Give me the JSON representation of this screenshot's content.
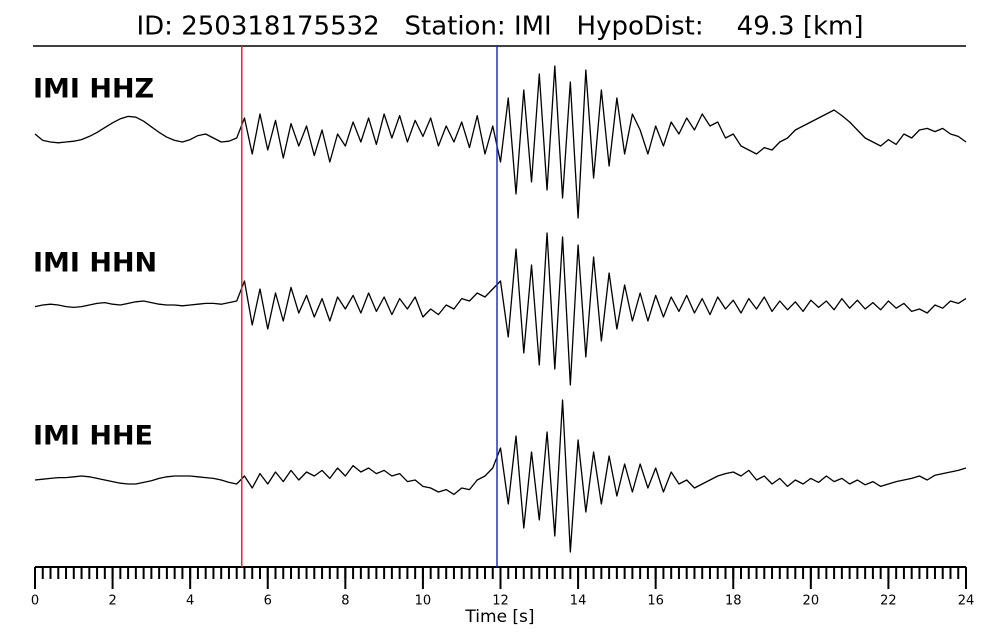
{
  "chart_data": {
    "type": "line",
    "title": "ID: 250318175532   Station: IMI   HypoDist:    49.3 [km]",
    "xlabel": "Time [s]",
    "xlim": [
      0,
      24
    ],
    "xticks": [
      0,
      2,
      4,
      6,
      8,
      10,
      12,
      14,
      16,
      18,
      20,
      22,
      24
    ],
    "xminorticks": [
      0,
      0.2,
      0.4,
      0.6,
      0.8,
      1,
      1.2,
      1.4,
      1.6,
      1.8,
      2,
      2.2,
      2.4,
      2.6,
      2.8,
      3,
      3.2,
      3.4,
      3.6,
      3.8,
      4,
      4.2,
      4.4,
      4.6,
      4.8,
      5,
      5.2,
      5.4,
      5.6,
      5.8,
      6,
      6.2,
      6.4,
      6.6,
      6.8,
      7,
      7.2,
      7.4,
      7.6,
      7.8,
      8,
      8.2,
      8.4,
      8.6,
      8.8,
      9,
      9.2,
      9.4,
      9.6,
      9.8,
      10,
      10.2,
      10.4,
      10.6,
      10.8,
      11,
      11.2,
      11.4,
      11.6,
      11.8,
      12,
      12.2,
      12.4,
      12.6,
      12.8,
      13,
      13.2,
      13.4,
      13.6,
      13.8,
      14,
      14.2,
      14.4,
      14.6,
      14.8,
      15,
      15.2,
      15.4,
      15.6,
      15.8,
      16,
      16.2,
      16.4,
      16.6,
      16.8,
      17,
      17.2,
      17.4,
      17.6,
      17.8,
      18,
      18.2,
      18.4,
      18.6,
      18.8,
      19,
      19.2,
      19.4,
      19.6,
      19.8,
      20,
      20.2,
      20.4,
      20.6,
      20.8,
      21,
      21.2,
      21.4,
      21.6,
      21.8,
      22,
      22.2,
      22.4,
      22.6,
      22.8,
      23,
      23.2,
      23.4,
      23.6,
      23.8,
      24
    ],
    "ylim": [
      -1,
      1
    ],
    "label_color": "#4c9a00",
    "vlines": [
      {
        "value": 5.33,
        "color": "#e8262b"
      },
      {
        "value": 11.91,
        "color": "#1f2fd0"
      }
    ],
    "x": [
      0,
      0.2,
      0.4,
      0.6,
      0.8,
      1,
      1.2,
      1.4,
      1.6,
      1.8,
      2,
      2.2,
      2.4,
      2.6,
      2.8,
      3,
      3.2,
      3.4,
      3.6,
      3.8,
      4,
      4.2,
      4.4,
      4.6,
      4.8,
      5,
      5.2,
      5.4,
      5.6,
      5.8,
      6,
      6.2,
      6.4,
      6.6,
      6.8,
      7,
      7.2,
      7.4,
      7.6,
      7.8,
      8,
      8.2,
      8.4,
      8.6,
      8.8,
      9,
      9.2,
      9.4,
      9.6,
      9.8,
      10,
      10.2,
      10.4,
      10.6,
      10.8,
      11,
      11.2,
      11.4,
      11.6,
      11.8,
      12,
      12.2,
      12.4,
      12.6,
      12.8,
      13,
      13.2,
      13.4,
      13.6,
      13.8,
      14,
      14.2,
      14.4,
      14.6,
      14.8,
      15,
      15.2,
      15.4,
      15.6,
      15.8,
      16,
      16.2,
      16.4,
      16.6,
      16.8,
      17,
      17.2,
      17.4,
      17.6,
      17.8,
      18,
      18.2,
      18.4,
      18.6,
      18.8,
      19,
      19.2,
      19.4,
      19.6,
      19.8,
      20,
      20.2,
      20.4,
      20.6,
      20.8,
      21,
      21.2,
      21.4,
      21.6,
      21.8,
      22,
      22.2,
      22.4,
      22.6,
      22.8,
      23,
      23.2,
      23.4,
      23.6,
      23.8,
      24
    ],
    "series": [
      {
        "name": "IMI HHZ",
        "color": "#000000",
        "values": [
          0.05,
          -0.03,
          -0.05,
          -0.06,
          -0.05,
          -0.04,
          -0.02,
          0.02,
          0.07,
          0.13,
          0.19,
          0.24,
          0.27,
          0.26,
          0.21,
          0.14,
          0.07,
          0.01,
          -0.03,
          -0.05,
          -0.02,
          0.03,
          0.05,
          0.0,
          -0.05,
          -0.04,
          0.0,
          0.25,
          -0.2,
          0.3,
          -0.15,
          0.22,
          -0.25,
          0.18,
          -0.1,
          0.15,
          -0.22,
          0.1,
          -0.3,
          0.05,
          -0.1,
          0.2,
          -0.05,
          0.25,
          -0.08,
          0.3,
          0.0,
          0.28,
          -0.05,
          0.22,
          0.02,
          0.25,
          -0.1,
          0.15,
          -0.05,
          0.2,
          -0.12,
          0.28,
          -0.2,
          0.15,
          -0.3,
          0.5,
          -0.7,
          0.6,
          -0.55,
          0.8,
          -0.65,
          0.9,
          -0.75,
          0.7,
          -1.0,
          0.85,
          -0.5,
          0.6,
          -0.35,
          0.5,
          -0.2,
          0.3,
          0.1,
          -0.2,
          0.15,
          -0.1,
          0.2,
          0.05,
          0.25,
          0.1,
          0.3,
          0.15,
          0.2,
          0.0,
          0.05,
          -0.1,
          -0.15,
          -0.2,
          -0.12,
          -0.15,
          -0.05,
          0.0,
          0.1,
          0.15,
          0.2,
          0.25,
          0.3,
          0.35,
          0.28,
          0.2,
          0.1,
          0.0,
          -0.05,
          -0.1,
          -0.02,
          -0.08,
          0.05,
          0.0,
          0.1,
          0.12,
          0.08,
          0.12,
          0.05,
          0.02,
          -0.05
        ]
      },
      {
        "name": "IMI HHN",
        "color": "#000000",
        "values": [
          -0.02,
          0.0,
          0.01,
          0.0,
          -0.02,
          -0.03,
          -0.02,
          0.0,
          0.02,
          0.03,
          0.01,
          0.0,
          0.02,
          0.04,
          0.05,
          0.03,
          0.01,
          0.0,
          0.0,
          -0.01,
          0.0,
          0.01,
          0.02,
          0.02,
          0.01,
          0.03,
          0.05,
          0.3,
          -0.25,
          0.2,
          -0.3,
          0.15,
          -0.2,
          0.22,
          -0.1,
          0.12,
          -0.15,
          0.08,
          -0.2,
          0.1,
          -0.05,
          0.12,
          -0.1,
          0.15,
          -0.08,
          0.1,
          -0.12,
          0.08,
          -0.05,
          0.1,
          -0.15,
          -0.05,
          -0.12,
          0.0,
          -0.05,
          0.08,
          0.05,
          0.15,
          0.1,
          0.2,
          0.3,
          -0.4,
          0.7,
          -0.6,
          0.5,
          -0.75,
          0.9,
          -0.8,
          0.85,
          -1.0,
          0.75,
          -0.65,
          0.6,
          -0.45,
          0.4,
          -0.3,
          0.25,
          -0.2,
          0.15,
          -0.2,
          0.12,
          -0.15,
          0.1,
          -0.08,
          0.12,
          -0.1,
          0.08,
          -0.12,
          0.1,
          -0.05,
          0.06,
          -0.1,
          0.08,
          -0.05,
          0.1,
          -0.08,
          0.05,
          -0.06,
          0.04,
          -0.08,
          0.06,
          -0.03,
          0.05,
          -0.06,
          0.08,
          -0.04,
          0.06,
          -0.05,
          0.03,
          -0.06,
          0.05,
          -0.04,
          0.02,
          -0.08,
          -0.05,
          -0.1,
          0.0,
          -0.04,
          0.05,
          0.02,
          0.08
        ]
      },
      {
        "name": "IMI HHE",
        "color": "#000000",
        "values": [
          0.0,
          0.01,
          0.02,
          0.03,
          0.03,
          0.04,
          0.05,
          0.04,
          0.02,
          0.0,
          -0.02,
          -0.04,
          -0.05,
          -0.05,
          -0.03,
          -0.01,
          0.02,
          0.04,
          0.05,
          0.05,
          0.05,
          0.04,
          0.03,
          0.02,
          0.0,
          -0.03,
          -0.05,
          0.05,
          -0.1,
          0.08,
          -0.05,
          0.1,
          -0.02,
          0.12,
          0.0,
          0.1,
          0.05,
          0.12,
          0.02,
          0.15,
          0.05,
          0.18,
          0.1,
          0.15,
          0.08,
          0.12,
          0.05,
          0.08,
          -0.02,
          0.0,
          -0.08,
          -0.1,
          -0.15,
          -0.12,
          -0.18,
          -0.1,
          -0.12,
          0.0,
          0.05,
          0.15,
          0.4,
          -0.3,
          0.55,
          -0.6,
          0.35,
          -0.5,
          0.6,
          -0.7,
          1.0,
          -0.9,
          0.5,
          -0.4,
          0.35,
          -0.3,
          0.3,
          -0.2,
          0.2,
          -0.15,
          0.2,
          -0.1,
          0.15,
          -0.15,
          0.1,
          -0.05,
          0.0,
          -0.1,
          -0.05,
          0.0,
          0.05,
          0.08,
          0.1,
          0.05,
          0.12,
          0.0,
          0.05,
          -0.05,
          0.02,
          -0.08,
          0.0,
          -0.05,
          0.02,
          -0.03,
          0.05,
          -0.02,
          0.02,
          -0.05,
          0.0,
          -0.06,
          -0.02,
          -0.08,
          -0.05,
          -0.02,
          0.0,
          0.02,
          0.05,
          0.0,
          0.06,
          0.08,
          0.1,
          0.12,
          0.15
        ]
      }
    ]
  }
}
